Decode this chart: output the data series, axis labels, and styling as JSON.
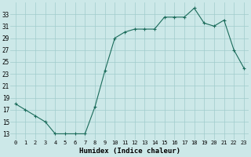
{
  "x": [
    0,
    1,
    2,
    3,
    4,
    5,
    6,
    7,
    8,
    9,
    10,
    11,
    12,
    13,
    14,
    15,
    16,
    17,
    18,
    19,
    20,
    21,
    22,
    23
  ],
  "y": [
    18,
    17,
    16,
    15,
    13,
    13,
    13,
    13,
    17.5,
    23.5,
    29,
    30,
    30.5,
    30.5,
    30.5,
    32.5,
    32.5,
    32.5,
    34,
    31.5,
    31,
    32,
    27,
    24
  ],
  "line_color": "#1a6b5a",
  "marker": "+",
  "marker_size": 3,
  "marker_linewidth": 0.8,
  "line_width": 0.8,
  "bg_color": "#cce8e8",
  "grid_color": "#a0cccc",
  "xlabel": "Humidex (Indice chaleur)",
  "xlabel_fontsize": 6.5,
  "xlabel_fontfamily": "monospace",
  "tick_fontsize": 5.0,
  "ytick_fontsize": 5.5,
  "yticks": [
    13,
    15,
    17,
    19,
    21,
    23,
    25,
    27,
    29,
    31,
    33
  ],
  "xticks": [
    0,
    1,
    2,
    3,
    4,
    5,
    6,
    7,
    8,
    9,
    10,
    11,
    12,
    13,
    14,
    15,
    16,
    17,
    18,
    19,
    20,
    21,
    22,
    23
  ],
  "xlim": [
    -0.5,
    23.5
  ],
  "ylim": [
    12,
    35
  ]
}
